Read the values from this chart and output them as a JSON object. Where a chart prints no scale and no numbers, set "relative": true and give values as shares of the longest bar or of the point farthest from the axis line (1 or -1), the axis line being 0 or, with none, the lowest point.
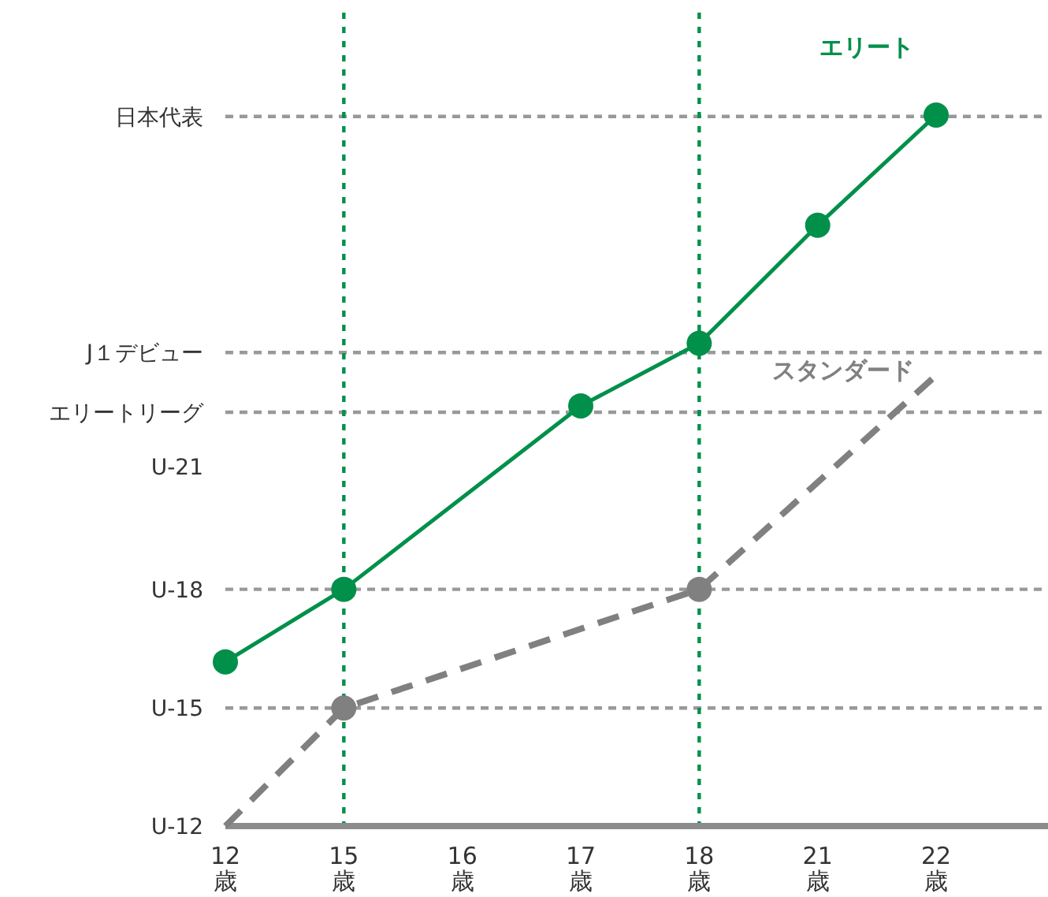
{
  "chart_data": {
    "type": "line",
    "relative": true,
    "categories": [
      "12\n歳",
      "15\n歳",
      "16\n歳",
      "17\n歳",
      "18\n歳",
      "21\n歳",
      "22\n歳"
    ],
    "grid": false,
    "series": [
      {
        "name": "エリート",
        "color": "#00904a",
        "line_style": "solid",
        "values": [
          0.231,
          0.333,
          null,
          0.591,
          0.679,
          0.845,
          1
        ]
      },
      {
        "name": "スタンダード",
        "color": "#808080",
        "line_style": "dashed",
        "values": [
          0,
          0.166,
          null,
          null,
          0.333,
          null,
          0.634
        ]
      },
      {
        "type": "scatter",
        "color": "#00904a",
        "marker": "circle",
        "x": [
          "12\n歳",
          "15\n歳",
          "17\n歳",
          "18\n歳",
          "21\n歳",
          "22\n歳"
        ],
        "values": [
          0.231,
          0.333,
          0.591,
          0.679,
          0.845,
          1
        ]
      },
      {
        "type": "scatter",
        "color": "#808080",
        "marker": "circle",
        "x": [
          "15\n歳",
          "18\n歳"
        ],
        "values": [
          0.166,
          0.333
        ]
      }
    ],
    "annotations": [
      "U-12",
      "U-21"
    ],
    "ref_lines": [
      {
        "axis": "y",
        "value": 0.166,
        "label": "U-15",
        "color": "#999999",
        "line_style": "dashed"
      },
      {
        "axis": "y",
        "value": 0.333,
        "label": "U-18",
        "color": "#999999",
        "line_style": "dashed"
      },
      {
        "axis": "y",
        "value": 0.582,
        "label": "エリートリーグ",
        "color": "#999999",
        "line_style": "dashed"
      },
      {
        "axis": "y",
        "value": 0.666,
        "label": "J１デビュー",
        "color": "#999999",
        "line_style": "dashed"
      },
      {
        "axis": "y",
        "value": 0.998,
        "label": "日本代表",
        "color": "#999999",
        "line_style": "dashed"
      },
      {
        "axis": "x",
        "value": "15\n歳",
        "color": "#00904a",
        "line_style": "dotted"
      },
      {
        "axis": "x",
        "value": "18\n歳",
        "color": "#00904a",
        "line_style": "dotted"
      }
    ]
  }
}
